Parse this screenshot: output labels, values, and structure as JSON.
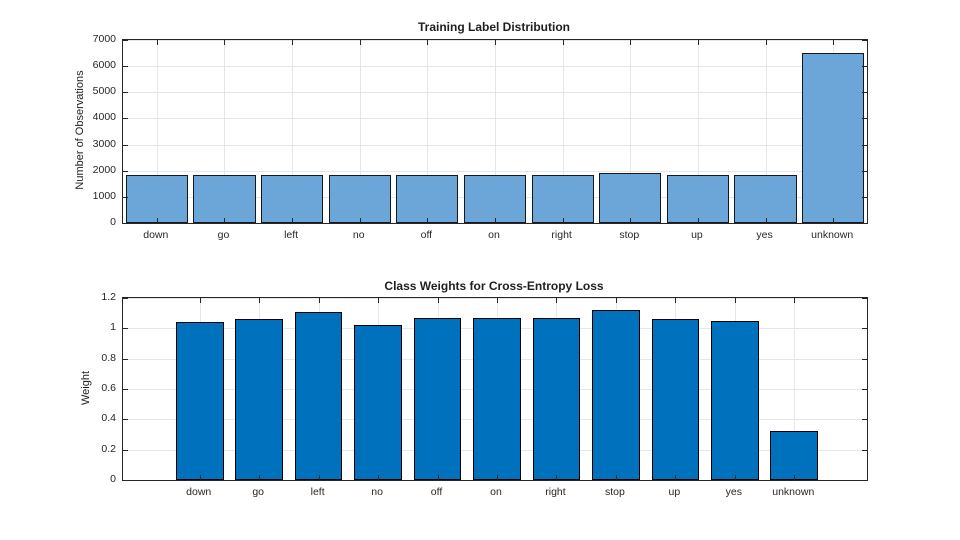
{
  "figure": {
    "background": "#FFFFFF",
    "axis_color": "#262626",
    "grid_color": "#E6E6E6",
    "text_color": "#1F1F1F"
  },
  "chart_data": [
    {
      "type": "bar",
      "title": "Training Label Distribution",
      "xlabel": "",
      "ylabel": "Number of Observations",
      "categories": [
        "down",
        "go",
        "left",
        "no",
        "off",
        "on",
        "right",
        "stop",
        "up",
        "yes",
        "unknown"
      ],
      "values": [
        1850,
        1850,
        1850,
        1850,
        1850,
        1850,
        1850,
        1900,
        1850,
        1850,
        6500
      ],
      "ylim": [
        0,
        7000
      ],
      "yticks": [
        0,
        1000,
        2000,
        3000,
        4000,
        5000,
        6000,
        7000
      ],
      "ytick_labels": [
        "0",
        "1000",
        "2000",
        "3000",
        "4000",
        "5000",
        "6000",
        "7000"
      ],
      "grid": true,
      "legend": null,
      "bar_fill": "#6CA6D8",
      "bar_edge": "#15191E"
    },
    {
      "type": "bar",
      "title": "Class Weights for Cross-Entropy Loss",
      "xlabel": "",
      "ylabel": "Weight",
      "categories": [
        "down",
        "go",
        "left",
        "no",
        "off",
        "on",
        "right",
        "stop",
        "up",
        "yes",
        "unknown"
      ],
      "values": [
        1.04,
        1.06,
        1.11,
        1.02,
        1.07,
        1.07,
        1.07,
        1.12,
        1.06,
        1.05,
        0.32
      ],
      "ylim": [
        0,
        1.2
      ],
      "yticks": [
        0,
        0.2,
        0.4,
        0.6,
        0.8,
        1,
        1.2
      ],
      "ytick_labels": [
        "0",
        "0.2",
        "0.4",
        "0.6",
        "0.8",
        "1",
        "1.2"
      ],
      "grid": true,
      "legend": null,
      "bar_fill": "#0072BD",
      "bar_edge": "#000000"
    }
  ]
}
